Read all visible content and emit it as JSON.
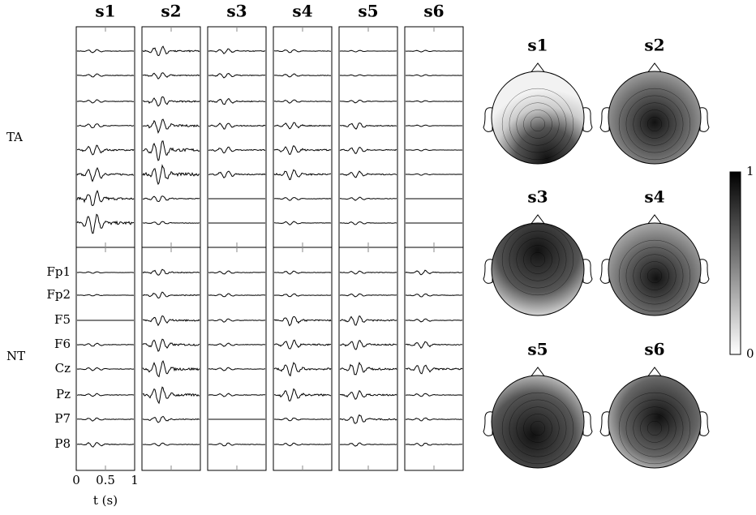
{
  "columns": [
    "s1",
    "s2",
    "s3",
    "s4",
    "s5",
    "s6"
  ],
  "groups": [
    {
      "label": "TA"
    },
    {
      "label": "NT",
      "channels": [
        "Fp1",
        "Fp2",
        "F5",
        "F6",
        "Cz",
        "Pz",
        "P7",
        "P8"
      ]
    }
  ],
  "time_axis": {
    "label": "t (s)",
    "lim": [
      0,
      1
    ],
    "ticks": [
      0,
      0.5,
      1
    ]
  },
  "topomaps": [
    "s1",
    "s2",
    "s3",
    "s4",
    "s5",
    "s6"
  ],
  "colorbar": {
    "lim": [
      0,
      1
    ],
    "ticks": [
      0,
      1
    ]
  }
}
